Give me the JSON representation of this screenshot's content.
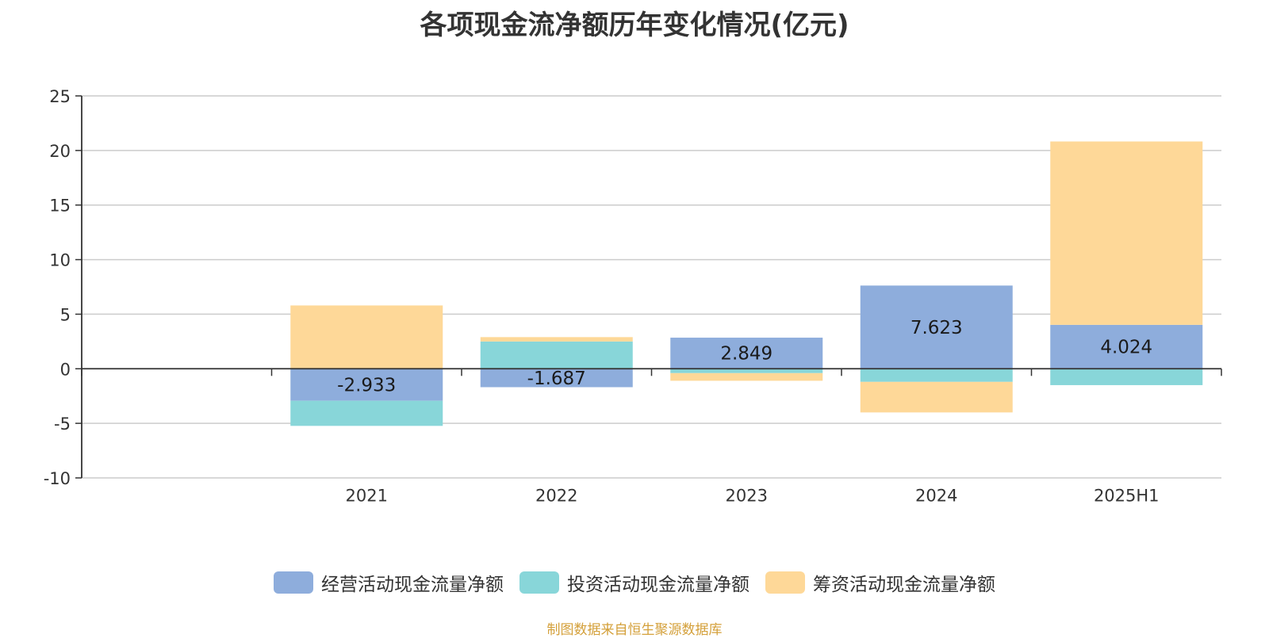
{
  "chart_data": {
    "type": "bar",
    "stacked": true,
    "title": "各项现金流净额历年变化情况(亿元)",
    "categories": [
      "2021",
      "2022",
      "2023",
      "2024",
      "2025H1"
    ],
    "ylim": [
      -10,
      25
    ],
    "yticks": [
      25,
      20,
      15,
      10,
      5,
      0,
      -5,
      -10
    ],
    "series": [
      {
        "name": "经营活动现金流量净额",
        "color": "#8eaddc",
        "values": [
          -2.933,
          -1.687,
          2.849,
          7.623,
          4.024
        ],
        "labels": [
          "-2.933",
          "-1.687",
          "2.849",
          "7.623",
          "4.024"
        ]
      },
      {
        "name": "投资活动现金流量净额",
        "color": "#88d6d9",
        "values": [
          -2.3,
          2.5,
          -0.4,
          -1.2,
          -1.5
        ]
      },
      {
        "name": "筹资活动现金流量净额",
        "color": "#fed898",
        "values": [
          5.8,
          0.4,
          -0.7,
          -2.8,
          16.8
        ]
      }
    ],
    "legend_position": "bottom",
    "grid": true
  },
  "source_note": "制图数据来自恒生聚源数据库"
}
